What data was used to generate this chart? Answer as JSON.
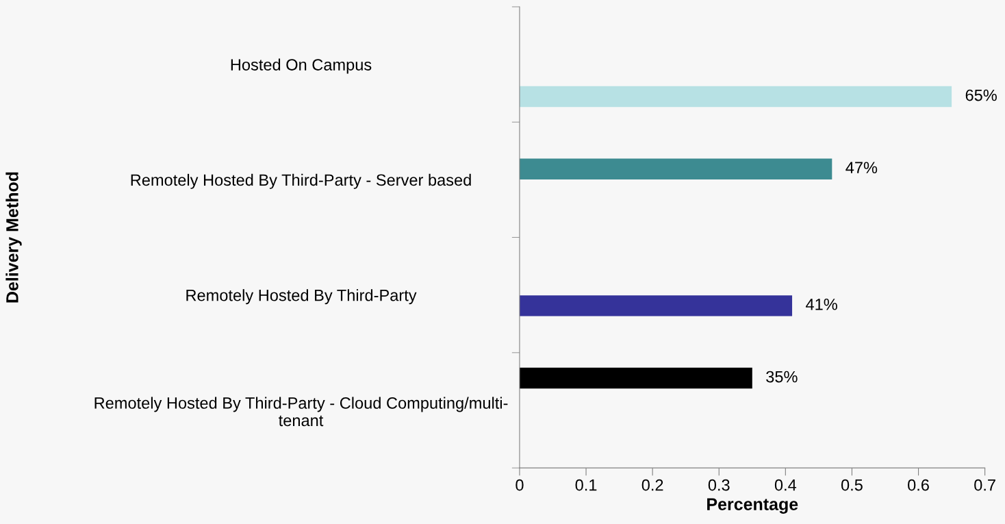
{
  "chart_data": {
    "type": "bar",
    "orientation": "horizontal",
    "xlabel": "Percentage",
    "ylabel": "Delivery Method",
    "categories": [
      "Hosted On Campus",
      "Remotely Hosted By Third-Party - Server based",
      "Remotely Hosted By Third-Party",
      "Remotely Hosted By Third-Party - Cloud Computing/multi-\ntenant"
    ],
    "series": [
      {
        "color": "#000000",
        "values": [
          null,
          null,
          null,
          0.35
        ],
        "value_labels": [
          null,
          null,
          null,
          "35%"
        ]
      },
      {
        "color": "#3d8b91",
        "values": [
          null,
          0.47,
          null,
          null
        ],
        "value_labels": [
          null,
          "47%",
          null,
          null
        ]
      },
      {
        "color": "#35339a",
        "values": [
          null,
          null,
          0.41,
          null
        ],
        "value_labels": [
          null,
          null,
          "41%",
          null
        ]
      },
      {
        "color": "#b7e1e4",
        "values": [
          0.65,
          null,
          null,
          null
        ],
        "value_labels": [
          "65%",
          null,
          null,
          null
        ]
      }
    ],
    "xlim": [
      0,
      0.7
    ],
    "xticks": [
      0,
      0.1,
      0.2,
      0.3,
      0.4,
      0.5,
      0.6,
      0.7
    ],
    "grid": false,
    "legend": false
  }
}
